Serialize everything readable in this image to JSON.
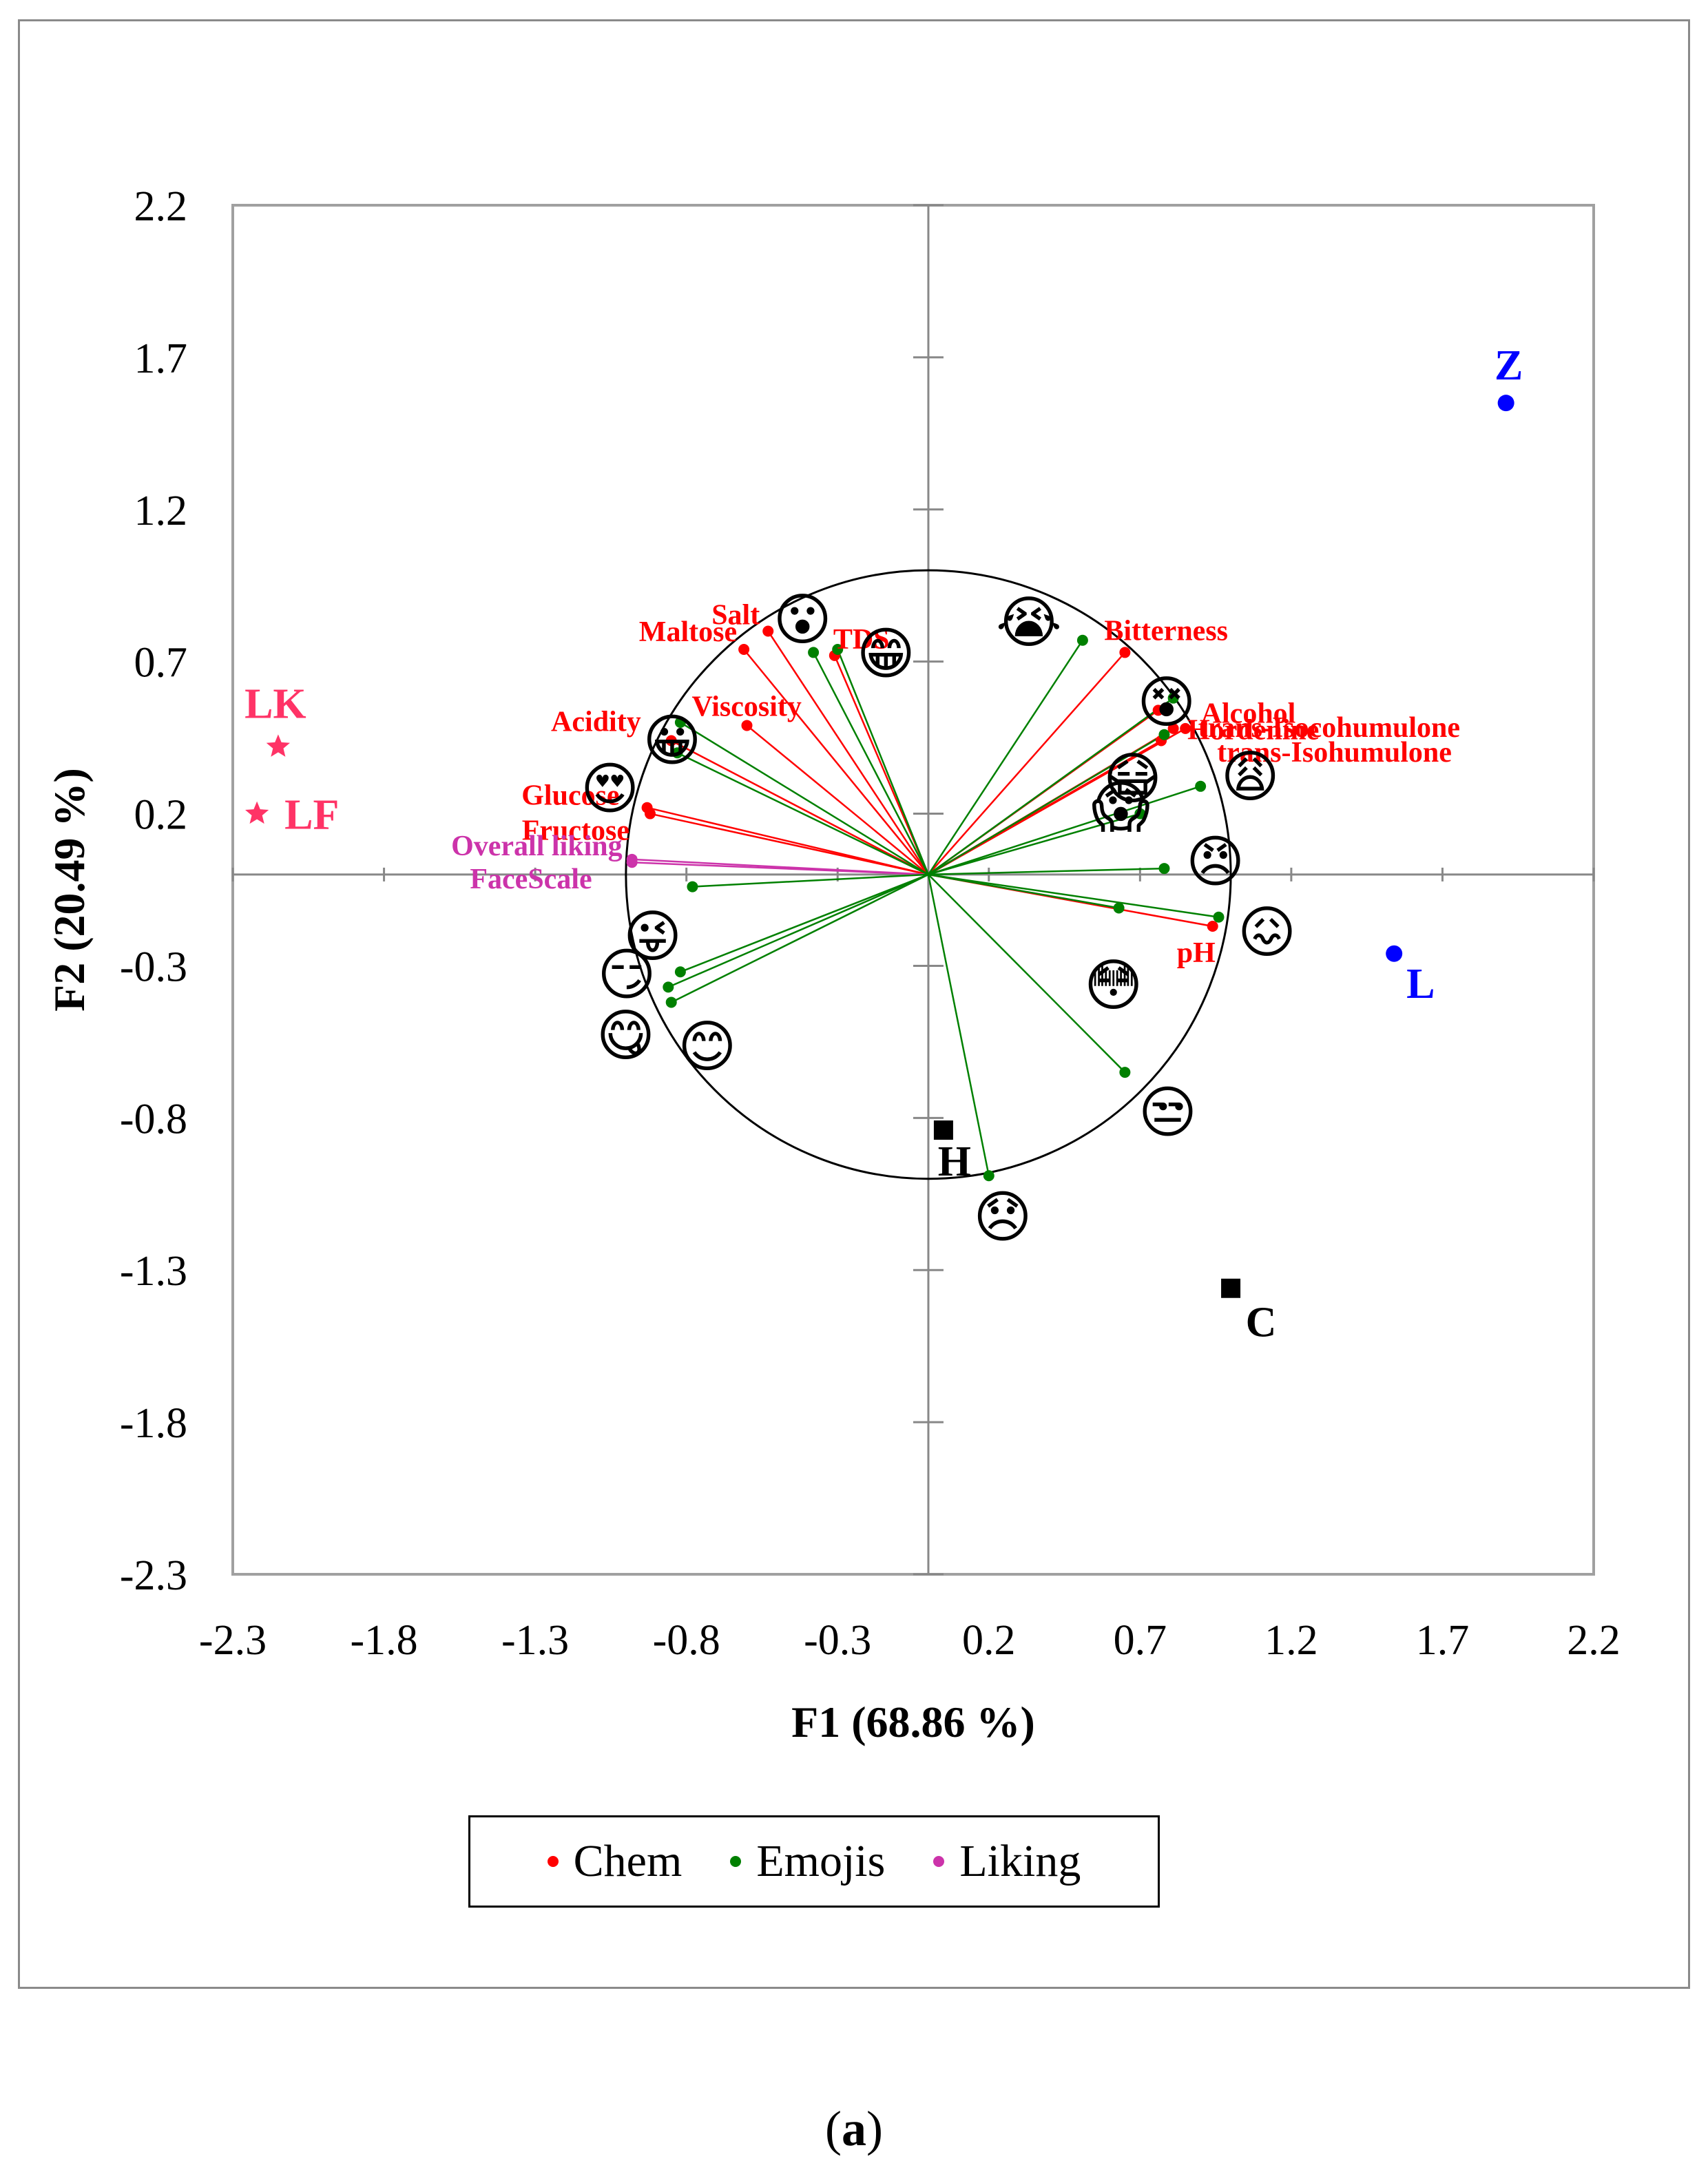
{
  "chart_data": {
    "type": "scatter",
    "subtype": "pca-biplot",
    "xlabel": "F1 (68.86 %)",
    "ylabel": "F2 (20.49 %)",
    "xlim": [
      -2.3,
      2.2
    ],
    "ylim": [
      -2.3,
      2.2
    ],
    "x_ticks": [
      "-2.3",
      "-1.8",
      "-1.3",
      "-0.8",
      "-0.3",
      "0.2",
      "0.7",
      "1.2",
      "1.7",
      "2.2"
    ],
    "y_ticks": [
      "2.2",
      "1.7",
      "1.2",
      "0.7",
      "0.2",
      "-0.3",
      "-0.8",
      "-1.3",
      "-1.8",
      "-2.3"
    ],
    "circle_radius": 1.0,
    "legend": [
      {
        "label": "Chem",
        "color": "#ff0000"
      },
      {
        "label": "Emojis",
        "color": "#008000"
      },
      {
        "label": "Liking",
        "color": "#cc33aa"
      }
    ],
    "colors": {
      "Chem": "#ff0000",
      "Emojis": "#008000",
      "Liking": "#cc33aa",
      "H_C": "#000000",
      "Z_L": "#0000ff",
      "LK_LF": "#ff3366"
    },
    "chem": [
      {
        "name": "Salt",
        "x": -0.53,
        "y": 0.8
      },
      {
        "name": "Maltose",
        "x": -0.61,
        "y": 0.74
      },
      {
        "name": "TDS",
        "x": -0.31,
        "y": 0.72
      },
      {
        "name": "Viscosity",
        "x": -0.6,
        "y": 0.49
      },
      {
        "name": "Acidity",
        "x": -0.85,
        "y": 0.44
      },
      {
        "name": "Glucose",
        "x": -0.93,
        "y": 0.22
      },
      {
        "name": "Fructose",
        "x": -0.92,
        "y": 0.2
      },
      {
        "name": "Bitterness",
        "x": 0.65,
        "y": 0.73
      },
      {
        "name": "Alcohol",
        "x": 0.76,
        "y": 0.54
      },
      {
        "name": "Hordenine",
        "x": 0.77,
        "y": 0.44
      },
      {
        "name": "trans-Isocohumulone",
        "x": 0.81,
        "y": 0.48
      },
      {
        "name": "trans-Isohumulone",
        "x": 0.85,
        "y": 0.48
      },
      {
        "name": "pH",
        "x": 0.94,
        "y": -0.17
      }
    ],
    "emojis": [
      {
        "name": "astonished",
        "symbol": "😮",
        "x": -0.38,
        "y": 0.73
      },
      {
        "name": "beaming-grin",
        "symbol": "😁",
        "x": -0.3,
        "y": 0.74
      },
      {
        "name": "loudly-crying",
        "symbol": "😭",
        "x": 0.51,
        "y": 0.77
      },
      {
        "name": "dizzy",
        "symbol": "😵",
        "x": 0.81,
        "y": 0.58
      },
      {
        "name": "grinning",
        "symbol": "😀",
        "x": -0.82,
        "y": 0.5
      },
      {
        "name": "heart-eyes",
        "symbol": "😍",
        "x": -0.83,
        "y": 0.4
      },
      {
        "name": "medical-mask",
        "symbol": "😷",
        "x": 0.78,
        "y": 0.46
      },
      {
        "name": "weary",
        "symbol": "😩",
        "x": 0.9,
        "y": 0.29
      },
      {
        "name": "screaming-in-fear",
        "symbol": "😱",
        "x": 0.7,
        "y": 0.2
      },
      {
        "name": "angry",
        "symbol": "😠",
        "x": 0.78,
        "y": 0.02
      },
      {
        "name": "persevering",
        "symbol": "😖",
        "x": 0.96,
        "y": -0.14
      },
      {
        "name": "flushed",
        "symbol": "😳",
        "x": 0.63,
        "y": -0.11
      },
      {
        "name": "winking-tongue",
        "symbol": "😜",
        "x": -0.78,
        "y": -0.04
      },
      {
        "name": "smirking",
        "symbol": "😏",
        "x": -0.82,
        "y": -0.32
      },
      {
        "name": "savoring-food",
        "symbol": "😋",
        "x": -0.86,
        "y": -0.37
      },
      {
        "name": "smiling-eyes",
        "symbol": "😊",
        "x": -0.85,
        "y": -0.42
      },
      {
        "name": "unamused",
        "symbol": "😒",
        "x": 0.65,
        "y": -0.65
      },
      {
        "name": "disappointed",
        "symbol": "😞",
        "x": 0.2,
        "y": -0.99
      }
    ],
    "liking": [
      {
        "name": "Overall liking",
        "x": -0.98,
        "y": 0.05
      },
      {
        "name": "FaceScale",
        "x": -0.98,
        "y": 0.04
      }
    ],
    "observations": [
      {
        "name": "LK",
        "x": -2.15,
        "y": 0.42,
        "marker": "star",
        "group": "LK_LF"
      },
      {
        "name": "LF",
        "x": -2.22,
        "y": 0.2,
        "marker": "star",
        "group": "LK_LF"
      },
      {
        "name": "Z",
        "x": 1.91,
        "y": 1.55,
        "marker": "circle",
        "group": "Z_L"
      },
      {
        "name": "L",
        "x": 1.54,
        "y": -0.26,
        "marker": "circle",
        "group": "Z_L"
      },
      {
        "name": "H",
        "x": 0.05,
        "y": -0.84,
        "marker": "square",
        "group": "H_C"
      },
      {
        "name": "C",
        "x": 1.0,
        "y": -1.36,
        "marker": "square",
        "group": "H_C"
      }
    ]
  },
  "caption": {
    "open": "(",
    "letter": "a",
    "close": ")"
  }
}
